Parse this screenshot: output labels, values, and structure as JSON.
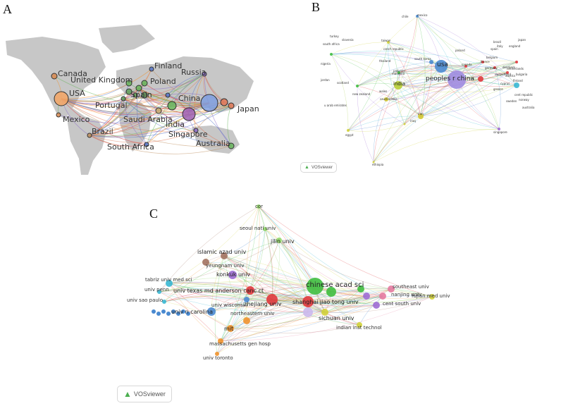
{
  "panels": {
    "a": {
      "letter": "A",
      "labels": [
        "Canada",
        "United Kingdom",
        "USA",
        "Finland",
        "Russia",
        "Poland",
        "Spain",
        "Portugal",
        "China",
        "Japan",
        "Mexico",
        "Saudi Arabia",
        "India",
        "Brazil",
        "Singapore",
        "South Africa",
        "Australia"
      ]
    },
    "b": {
      "letter": "B",
      "labels_big": [
        "usa",
        "peoples r china"
      ],
      "labels_mid": [
        "india",
        "iran",
        "saudi arabia",
        "south korea"
      ],
      "labels_small": [
        "chile",
        "mexico",
        "turkey",
        "slovenia",
        "south africa",
        "taiwan",
        "czech republic",
        "nigeria",
        "thailand",
        "pakistan",
        "jordan",
        "scotland",
        "new zealand",
        "wales",
        "u arab emirates",
        "malaysia",
        "egypt",
        "iraq",
        "ethiopia",
        "singapore",
        "poland",
        "canada",
        "germany",
        "denmark",
        "switzerland",
        "france",
        "austria",
        "belgium",
        "spain",
        "italy",
        "england",
        "japan",
        "greece",
        "cent republic",
        "sweden",
        "norway",
        "brazil",
        "finland",
        "cyprus",
        "bulgaria",
        "netherlands",
        "australia"
      ],
      "vosviewer": "VOSviewer"
    },
    "c": {
      "letter": "C",
      "labels_big": [
        "chinese acad sci"
      ],
      "labels_mid": [
        "univ texas md anderson canc ct",
        "shanghai jiao tong univ",
        "sichuan univ",
        "konkuk univ",
        "islamic azad univ",
        "zhejiang univ",
        "univ n carolina",
        "mit",
        "jilin univ"
      ],
      "labels_small": [
        "cor",
        "seoul natl univ",
        "yeungnam univ",
        "tabriz univ med sci",
        "univ penn",
        "univ sao paulo",
        "univ wisconsin",
        "northeastern univ",
        "massachusetts gen hosp",
        "univ toronto",
        "indian inst technol",
        "southeast univ",
        "nanjing univ",
        "cent south univ",
        "fujian med univ"
      ],
      "vosviewer": "VOSviewer"
    }
  },
  "colors": {
    "map_land": "#c7c7c7",
    "usa": "#f3a564",
    "china": "#7f9fe0",
    "india": "#b8cf36",
    "iran": "#d4c832",
    "saudi": "#c4a870",
    "red": "#e0393d",
    "green": "#3fbe3f",
    "purple": "#9d6bd4",
    "cyan": "#38b8d4",
    "blue": "#4a8ad0",
    "orange": "#f0922c",
    "brown": "#a37261",
    "pink": "#e67aa0",
    "yellow": "#d2d23a",
    "lightgreen": "#92d66a"
  }
}
